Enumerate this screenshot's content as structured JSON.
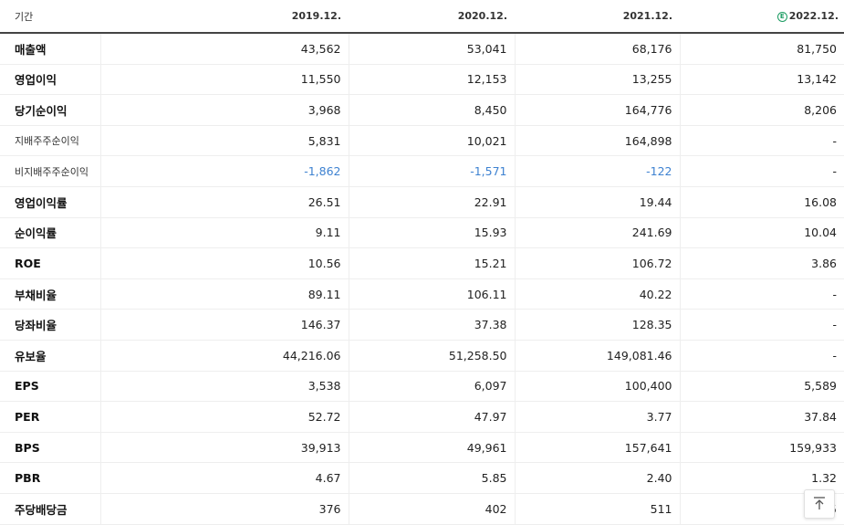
{
  "table": {
    "period_label": "기간",
    "columns": [
      {
        "label": "2019.12.",
        "estimate": false
      },
      {
        "label": "2020.12.",
        "estimate": false
      },
      {
        "label": "2021.12.",
        "estimate": false
      },
      {
        "label": "2022.12.",
        "estimate": true,
        "estimate_badge": "E"
      }
    ],
    "rows": [
      {
        "label": "매출액",
        "small": false,
        "group_start": false,
        "values": [
          "43,562",
          "53,041",
          "68,176",
          "81,750"
        ]
      },
      {
        "label": "영업이익",
        "small": false,
        "group_start": false,
        "values": [
          "11,550",
          "12,153",
          "13,255",
          "13,142"
        ]
      },
      {
        "label": "당기순이익",
        "small": false,
        "group_start": false,
        "values": [
          "3,968",
          "8,450",
          "164,776",
          "8,206"
        ]
      },
      {
        "label": "지배주주순이익",
        "small": true,
        "group_start": false,
        "values": [
          "5,831",
          "10,021",
          "164,898",
          "-"
        ]
      },
      {
        "label": "비지배주주순이익",
        "small": true,
        "group_start": false,
        "values": [
          "-1,862",
          "-1,571",
          "-122",
          "-"
        ]
      },
      {
        "label": "영업이익률",
        "small": false,
        "group_start": true,
        "values": [
          "26.51",
          "22.91",
          "19.44",
          "16.08"
        ]
      },
      {
        "label": "순이익률",
        "small": false,
        "group_start": false,
        "values": [
          "9.11",
          "15.93",
          "241.69",
          "10.04"
        ]
      },
      {
        "label": "ROE",
        "small": false,
        "group_start": false,
        "values": [
          "10.56",
          "15.21",
          "106.72",
          "3.86"
        ]
      },
      {
        "label": "부채비율",
        "small": false,
        "group_start": true,
        "values": [
          "89.11",
          "106.11",
          "40.22",
          "-"
        ]
      },
      {
        "label": "당좌비율",
        "small": false,
        "group_start": false,
        "values": [
          "146.37",
          "37.38",
          "128.35",
          "-"
        ]
      },
      {
        "label": "유보율",
        "small": false,
        "group_start": false,
        "values": [
          "44,216.06",
          "51,258.50",
          "149,081.46",
          "-"
        ]
      },
      {
        "label": "EPS",
        "small": false,
        "group_start": true,
        "values": [
          "3,538",
          "6,097",
          "100,400",
          "5,589"
        ]
      },
      {
        "label": "PER",
        "small": false,
        "group_start": false,
        "values": [
          "52.72",
          "47.97",
          "3.77",
          "37.84"
        ]
      },
      {
        "label": "BPS",
        "small": false,
        "group_start": false,
        "values": [
          "39,913",
          "49,961",
          "157,641",
          "159,933"
        ]
      },
      {
        "label": "PBR",
        "small": false,
        "group_start": false,
        "values": [
          "4.67",
          "5.85",
          "2.40",
          "1.32"
        ]
      },
      {
        "label": "주당배당금",
        "small": false,
        "group_start": true,
        "values": [
          "376",
          "402",
          "511",
          "5"
        ]
      }
    ]
  },
  "colors": {
    "negative": "#3e82d1",
    "estimate": "#1a9b61"
  },
  "scroll_top_icon": "arrow-up-to-top-icon"
}
